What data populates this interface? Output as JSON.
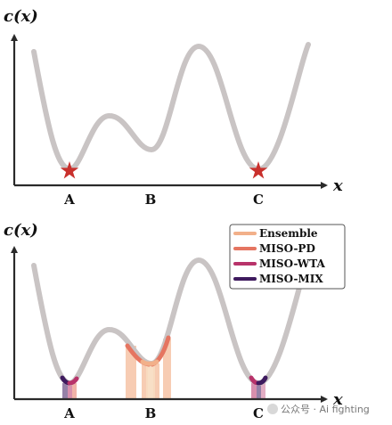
{
  "top_panel": {
    "y_axis_label": "c(x)",
    "x_axis_label": "x",
    "points": [
      "A",
      "B",
      "C"
    ]
  },
  "bottom_panel": {
    "y_axis_label": "c(x)",
    "x_axis_label": "x",
    "points": [
      "A",
      "B",
      "C"
    ]
  },
  "legend": {
    "items": [
      {
        "label": "Ensemble",
        "color": "#f2b08a"
      },
      {
        "label": "MISO-PD",
        "color": "#e57561"
      },
      {
        "label": "MISO-WTA",
        "color": "#b8336a"
      },
      {
        "label": "MISO-MIX",
        "color": "#3e1a5e"
      }
    ]
  },
  "colors": {
    "curve": "#c9c4c4",
    "axis": "#2a2a2a",
    "star": "#c9302c"
  },
  "watermark": "公众号 · Ai fighting"
}
